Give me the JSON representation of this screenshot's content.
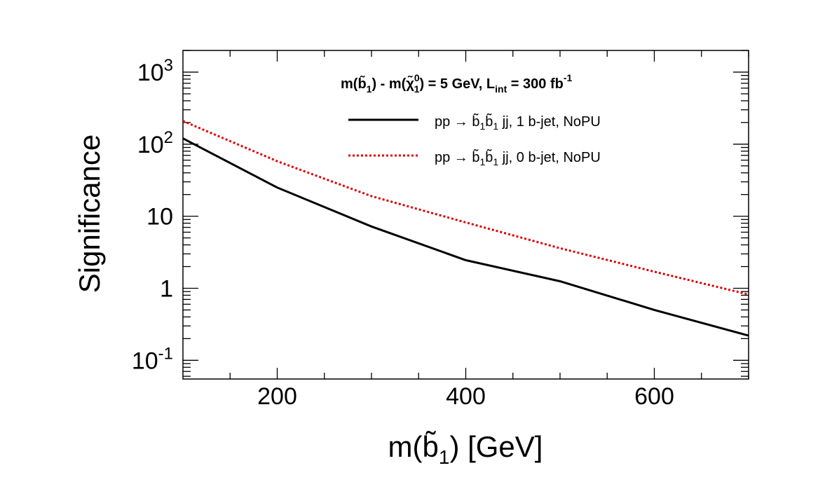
{
  "chart_data": {
    "type": "line",
    "title": "m(b̃1) - m(χ̃1^0) = 5 GeV, L_int = 300 fb^-1",
    "header": {
      "mass_prefix": "m(",
      "b_glyph": "b̃",
      "sub_1": "1",
      "minus": ") - m(",
      "chi_glyph": "χ̃",
      "chi_sup": "0",
      "chi_sub": "1",
      "mid": ") = 5 GeV, L",
      "lumi_sub": "int",
      "lumi_eq": " = 300 fb",
      "lumi_sup": "-1"
    },
    "xlabel": {
      "prefix": "m(",
      "b_glyph": "b̃",
      "sub": "1",
      "suffix": ") [GeV]"
    },
    "ylabel": "Significance",
    "xlim": [
      100,
      700
    ],
    "ylim": [
      0.055,
      2000
    ],
    "yscale": "log",
    "x_ticks": [
      {
        "value": 200,
        "label": "200"
      },
      {
        "value": 400,
        "label": "400"
      },
      {
        "value": 600,
        "label": "600"
      }
    ],
    "y_ticks": [
      {
        "value": 0.1,
        "base": "10",
        "exp": "-1"
      },
      {
        "value": 1,
        "base": "1",
        "exp": ""
      },
      {
        "value": 10,
        "base": "10",
        "exp": ""
      },
      {
        "value": 100,
        "base": "10",
        "exp": "2"
      },
      {
        "value": 1000,
        "base": "10",
        "exp": "3"
      }
    ],
    "legend_position": "top-center",
    "series": [
      {
        "name": "pp → b̃1b̃1 jj, 1 b-jet, NoPU",
        "legend": {
          "pre": "pp → ",
          "b1": "b̃",
          "s1": "1",
          "b2": "b̃",
          "s2": "1",
          "post": " jj, 1 b-jet, NoPU"
        },
        "color": "#000000",
        "style": "solid",
        "x": [
          100,
          200,
          300,
          400,
          500,
          600,
          700
        ],
        "y": [
          120,
          25,
          7.2,
          2.45,
          1.25,
          0.5,
          0.22
        ]
      },
      {
        "name": "pp → b̃1b̃1 jj, 0 b-jet, NoPU",
        "legend": {
          "pre": "pp → ",
          "b1": "b̃",
          "s1": "1",
          "b2": "b̃",
          "s2": "1",
          "post": " jj, 0 b-jet, NoPU"
        },
        "color": "#e00000",
        "style": "dotted",
        "x": [
          100,
          200,
          300,
          400,
          500,
          600,
          700
        ],
        "y": [
          210,
          58,
          19,
          8.2,
          3.6,
          1.7,
          0.82
        ]
      }
    ]
  }
}
